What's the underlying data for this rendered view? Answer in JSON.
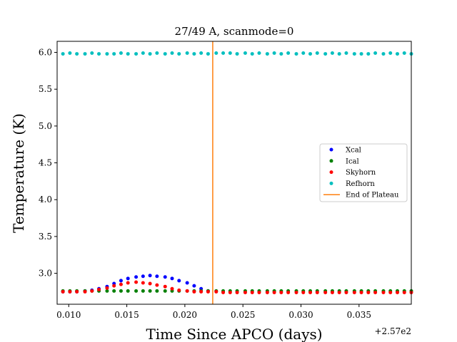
{
  "chart_data": {
    "type": "scatter",
    "title": "27/49 A, scanmode=0",
    "xlabel": "Time Since APCO (days)",
    "ylabel": "Temperature (K)",
    "x_offset_label": "+2.57e2",
    "xlim": [
      0.009,
      0.0395
    ],
    "ylim": [
      2.58,
      6.15
    ],
    "x_ticks": [
      0.01,
      0.015,
      0.02,
      0.025,
      0.03,
      0.035
    ],
    "x_tick_labels": [
      "0.010",
      "0.015",
      "0.020",
      "0.025",
      "0.030",
      "0.035"
    ],
    "y_ticks": [
      3.0,
      3.5,
      4.0,
      4.5,
      5.0,
      5.5,
      6.0
    ],
    "y_tick_labels": [
      "3.0",
      "3.5",
      "4.0",
      "4.5",
      "5.0",
      "5.5",
      "6.0"
    ],
    "grid": false,
    "legend_position": "center-right",
    "vline": {
      "name": "End of Plateau",
      "x": 0.0224,
      "color": "#ff7f0e"
    },
    "series": [
      {
        "name": "Xcal",
        "color": "#0000ff",
        "x": [
          0.0095,
          0.0101,
          0.0107,
          0.0114,
          0.012,
          0.0126,
          0.0133,
          0.0139,
          0.0145,
          0.0151,
          0.0158,
          0.0164,
          0.017,
          0.0176,
          0.0183,
          0.0189,
          0.0195,
          0.0202,
          0.0208,
          0.0214,
          0.022
        ],
        "y": [
          2.75,
          2.75,
          2.75,
          2.76,
          2.77,
          2.79,
          2.82,
          2.86,
          2.9,
          2.93,
          2.95,
          2.96,
          2.97,
          2.96,
          2.95,
          2.93,
          2.9,
          2.87,
          2.83,
          2.79,
          2.76
        ]
      },
      {
        "name": "Ical",
        "color": "#008000",
        "x": [
          0.0095,
          0.0101,
          0.0107,
          0.0114,
          0.012,
          0.0126,
          0.0133,
          0.0139,
          0.0145,
          0.0151,
          0.0158,
          0.0164,
          0.017,
          0.0176,
          0.0183,
          0.0189,
          0.0195,
          0.0202,
          0.0208,
          0.0214,
          0.022,
          0.0227,
          0.0233,
          0.0239,
          0.0245,
          0.0252,
          0.0258,
          0.0264,
          0.0271,
          0.0277,
          0.0283,
          0.0289,
          0.0296,
          0.0302,
          0.0308,
          0.0314,
          0.0321,
          0.0327,
          0.0333,
          0.0339,
          0.0346,
          0.0352,
          0.0358,
          0.0364,
          0.0371,
          0.0377,
          0.0383,
          0.0389,
          0.0395
        ],
        "y": [
          2.76,
          2.76,
          2.76,
          2.76,
          2.76,
          2.76,
          2.76,
          2.76,
          2.76,
          2.76,
          2.76,
          2.76,
          2.76,
          2.76,
          2.76,
          2.76,
          2.76,
          2.76,
          2.76,
          2.76,
          2.76,
          2.76,
          2.76,
          2.76,
          2.76,
          2.76,
          2.76,
          2.76,
          2.76,
          2.76,
          2.76,
          2.76,
          2.76,
          2.76,
          2.76,
          2.76,
          2.76,
          2.76,
          2.76,
          2.76,
          2.76,
          2.76,
          2.76,
          2.76,
          2.76,
          2.76,
          2.76,
          2.76,
          2.76
        ]
      },
      {
        "name": "Skyhorn",
        "color": "#ff0000",
        "x": [
          0.0095,
          0.0101,
          0.0107,
          0.0114,
          0.012,
          0.0126,
          0.0133,
          0.0139,
          0.0145,
          0.0151,
          0.0158,
          0.0164,
          0.017,
          0.0176,
          0.0183,
          0.0189,
          0.0195,
          0.0202,
          0.0208,
          0.0214,
          0.022,
          0.0227,
          0.0233,
          0.0239,
          0.0245,
          0.0252,
          0.0258,
          0.0264,
          0.0271,
          0.0277,
          0.0283,
          0.0289,
          0.0296,
          0.0302,
          0.0308,
          0.0314,
          0.0321,
          0.0327,
          0.0333,
          0.0339,
          0.0346,
          0.0352,
          0.0358,
          0.0364,
          0.0371,
          0.0377,
          0.0383,
          0.0389,
          0.0395
        ],
        "y": [
          2.75,
          2.75,
          2.75,
          2.75,
          2.76,
          2.78,
          2.8,
          2.83,
          2.85,
          2.87,
          2.88,
          2.87,
          2.86,
          2.84,
          2.82,
          2.79,
          2.77,
          2.76,
          2.75,
          2.75,
          2.75,
          2.75,
          2.74,
          2.74,
          2.74,
          2.74,
          2.74,
          2.74,
          2.74,
          2.74,
          2.74,
          2.74,
          2.74,
          2.74,
          2.74,
          2.74,
          2.74,
          2.74,
          2.74,
          2.74,
          2.74,
          2.74,
          2.74,
          2.74,
          2.74,
          2.74,
          2.74,
          2.74,
          2.74
        ]
      },
      {
        "name": "Refhorn",
        "color": "#00bfbf",
        "x": [
          0.0095,
          0.0101,
          0.0107,
          0.0114,
          0.012,
          0.0126,
          0.0133,
          0.0139,
          0.0145,
          0.0151,
          0.0158,
          0.0164,
          0.017,
          0.0176,
          0.0183,
          0.0189,
          0.0195,
          0.0202,
          0.0208,
          0.0214,
          0.022,
          0.0227,
          0.0233,
          0.0239,
          0.0245,
          0.0252,
          0.0258,
          0.0264,
          0.0271,
          0.0277,
          0.0283,
          0.0289,
          0.0296,
          0.0302,
          0.0308,
          0.0314,
          0.0321,
          0.0327,
          0.0333,
          0.0339,
          0.0346,
          0.0352,
          0.0358,
          0.0364,
          0.0371,
          0.0377,
          0.0383,
          0.0389,
          0.0395
        ],
        "y": [
          5.98,
          5.99,
          5.98,
          5.98,
          5.99,
          5.98,
          5.98,
          5.98,
          5.99,
          5.98,
          5.98,
          5.99,
          5.98,
          5.99,
          5.98,
          5.99,
          5.98,
          5.99,
          5.98,
          5.99,
          5.98,
          5.99,
          5.99,
          5.99,
          5.98,
          5.99,
          5.98,
          5.99,
          5.98,
          5.99,
          5.98,
          5.99,
          5.98,
          5.99,
          5.98,
          5.99,
          5.98,
          5.99,
          5.98,
          5.99,
          5.98,
          5.98,
          5.98,
          5.99,
          5.98,
          5.99,
          5.98,
          5.99,
          5.98
        ]
      }
    ]
  }
}
